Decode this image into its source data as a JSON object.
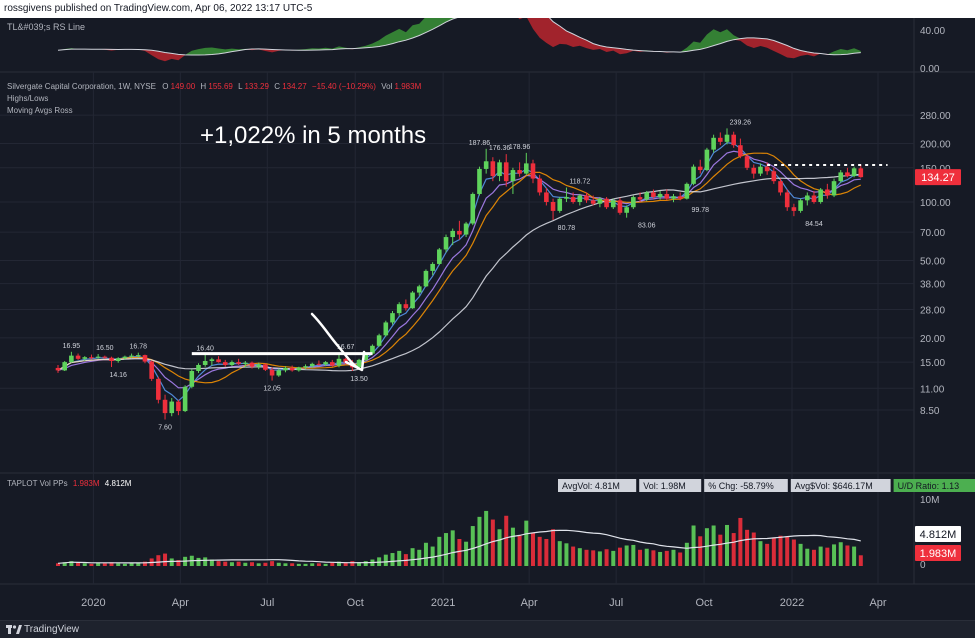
{
  "header": {
    "published": "rossgivens published on TradingView.com, Apr 06, 2022 13:17 UTC-5"
  },
  "footer": {
    "brand": "TradingView"
  },
  "colors": {
    "up": "#26a69a",
    "up_bright": "#5fd35c",
    "down": "#ef2f3c",
    "bg": "#161a25",
    "grid": "#232734"
  },
  "chart_data": [
    {
      "type": "area",
      "title": "TL&#039;s RS Line",
      "y_ticks": [
        "40.00",
        "0.00"
      ],
      "ylim": [
        -5,
        50
      ]
    },
    {
      "type": "candlestick",
      "title": "Silvergate Capital Corporation, 1W, NYSE",
      "ohlc_legend": {
        "o_label": "O",
        "o": "149.00",
        "h_label": "H",
        "h": "155.69",
        "l_label": "L",
        "l": "133.29",
        "c_label": "C",
        "c": "134.27",
        "chg": "−15.40 (−10.29%)",
        "vol_label": "Vol",
        "vol": "1.983M"
      },
      "indicators": [
        "Highs/Lows",
        "Moving Avgs Ross"
      ],
      "scale": "log",
      "y_ticks": [
        "280.00",
        "200.00",
        "150.00",
        "100.00",
        "70.00",
        "50.00",
        "38.00",
        "28.00",
        "20.00",
        "15.00",
        "11.00",
        "8.50"
      ],
      "last_price": "134.27",
      "annotation": "+1,022% in 5 months",
      "x_ticks": [
        "2020",
        "Apr",
        "Jul",
        "Oct",
        "2021",
        "Apr",
        "Jul",
        "Oct",
        "2022",
        "Apr"
      ],
      "pivot_labels": [
        {
          "date": "2019-12-09",
          "text": "16.95",
          "value": 16.95,
          "pos": "above"
        },
        {
          "date": "2020-01-13",
          "text": "16.50",
          "value": 16.5,
          "pos": "above"
        },
        {
          "date": "2020-01-27",
          "text": "14.16",
          "value": 14.16,
          "pos": "below"
        },
        {
          "date": "2020-02-17",
          "text": "16.78",
          "value": 16.78,
          "pos": "above"
        },
        {
          "date": "2020-03-16",
          "text": "7.60",
          "value": 7.6,
          "pos": "below"
        },
        {
          "date": "2020-04-27",
          "text": "16.40",
          "value": 16.4,
          "pos": "above"
        },
        {
          "date": "2020-07-06",
          "text": "12.05",
          "value": 12.05,
          "pos": "below"
        },
        {
          "date": "2020-09-21",
          "text": "16.67",
          "value": 16.67,
          "pos": "above"
        },
        {
          "date": "2020-10-05",
          "text": "13.50",
          "value": 13.5,
          "pos": "below"
        },
        {
          "date": "2021-02-08",
          "text": "187.86",
          "value": 187.86,
          "pos": "above"
        },
        {
          "date": "2021-03-01",
          "text": "176.36",
          "value": 176.36,
          "pos": "above"
        },
        {
          "date": "2021-03-22",
          "text": "178.96",
          "value": 178.96,
          "pos": "above"
        },
        {
          "date": "2021-05-10",
          "text": "80.78",
          "value": 80.78,
          "pos": "below"
        },
        {
          "date": "2021-05-24",
          "text": "118.72",
          "value": 118.72,
          "pos": "above"
        },
        {
          "date": "2021-08-02",
          "text": "83.06",
          "value": 83.06,
          "pos": "below"
        },
        {
          "date": "2021-09-27",
          "text": "99.78",
          "value": 99.78,
          "pos": "below"
        },
        {
          "date": "2021-11-08",
          "text": "239.26",
          "value": 239.26,
          "pos": "above"
        },
        {
          "date": "2022-01-24",
          "text": "84.54",
          "value": 84.54,
          "pos": "below"
        }
      ],
      "resistance_line": {
        "from": "2020-04-13",
        "to": "2020-10-19",
        "value": 16.6
      },
      "dotted_line": {
        "from": "2021-12-06",
        "to": "2022-04-11",
        "value": 155
      }
    },
    {
      "type": "bar",
      "title": "TAPLOT Vol PPs",
      "vol_values": [
        "1.983M",
        "4.812M"
      ],
      "y_ticks": [
        "10M",
        "0"
      ],
      "last_labels": [
        "4.812M",
        "1.983M"
      ],
      "stats": [
        {
          "text": "AvgVol: 4.81M",
          "hl": false
        },
        {
          "text": "Vol: 1.98M",
          "hl": false
        },
        {
          "text": "% Chg: -58.79%",
          "hl": false
        },
        {
          "text": "Avg$Vol: $646.17M",
          "hl": false
        },
        {
          "text": "U/D Ratio: 1.13",
          "hl": true
        }
      ]
    }
  ],
  "series": {
    "start_date": "2019-11-25",
    "weeks": [
      [
        14.0,
        14.5,
        13.2,
        13.6,
        0.5
      ],
      [
        13.6,
        15.2,
        13.5,
        15.0,
        0.7
      ],
      [
        15.0,
        16.95,
        14.9,
        16.2,
        0.9
      ],
      [
        16.2,
        16.6,
        15.4,
        15.6,
        0.6
      ],
      [
        15.6,
        16.1,
        15.2,
        15.9,
        0.5
      ],
      [
        15.9,
        16.4,
        15.5,
        15.8,
        0.4
      ],
      [
        15.8,
        16.5,
        15.6,
        16.0,
        0.6
      ],
      [
        16.0,
        16.2,
        15.6,
        15.8,
        0.5
      ],
      [
        15.8,
        16.0,
        14.16,
        15.2,
        0.7
      ],
      [
        15.2,
        15.9,
        14.9,
        15.7,
        0.5
      ],
      [
        15.7,
        16.2,
        15.4,
        16.0,
        0.4
      ],
      [
        16.0,
        16.6,
        15.7,
        16.2,
        0.5
      ],
      [
        16.2,
        16.78,
        15.8,
        16.3,
        0.6
      ],
      [
        16.3,
        16.4,
        14.8,
        15.1,
        0.8
      ],
      [
        15.1,
        15.3,
        12.0,
        12.3,
        1.4
      ],
      [
        12.3,
        12.6,
        9.2,
        9.6,
        2.0
      ],
      [
        9.6,
        10.2,
        7.6,
        8.2,
        2.3
      ],
      [
        8.2,
        9.8,
        7.9,
        9.4,
        1.4
      ],
      [
        9.4,
        9.6,
        8.0,
        8.4,
        1.1
      ],
      [
        8.4,
        11.4,
        8.3,
        11.2,
        1.7
      ],
      [
        11.2,
        13.8,
        11.0,
        13.5,
        1.9
      ],
      [
        13.5,
        14.8,
        13.2,
        14.5,
        1.5
      ],
      [
        14.5,
        16.4,
        14.2,
        15.2,
        1.6
      ],
      [
        15.2,
        15.8,
        14.4,
        15.5,
        1.2
      ],
      [
        15.5,
        16.1,
        14.9,
        15.0,
        0.9
      ],
      [
        15.0,
        15.4,
        14.2,
        14.5,
        0.8
      ],
      [
        14.5,
        15.3,
        14.3,
        15.0,
        0.7
      ],
      [
        15.0,
        15.6,
        14.5,
        14.7,
        0.8
      ],
      [
        14.7,
        15.2,
        14.1,
        14.9,
        0.6
      ],
      [
        14.9,
        15.1,
        13.9,
        14.2,
        0.7
      ],
      [
        14.2,
        14.9,
        13.8,
        14.6,
        0.5
      ],
      [
        14.6,
        14.8,
        13.5,
        13.7,
        0.6
      ],
      [
        13.7,
        14.1,
        12.05,
        12.8,
        0.9
      ],
      [
        12.8,
        13.9,
        12.6,
        13.6,
        0.6
      ],
      [
        13.6,
        14.3,
        13.3,
        14.0,
        0.5
      ],
      [
        14.0,
        14.4,
        13.4,
        13.6,
        0.5
      ],
      [
        13.6,
        14.2,
        13.4,
        14.1,
        0.4
      ],
      [
        14.1,
        14.6,
        13.8,
        14.3,
        0.4
      ],
      [
        14.3,
        14.9,
        14.0,
        14.7,
        0.5
      ],
      [
        14.7,
        15.3,
        14.4,
        14.6,
        0.5
      ],
      [
        14.6,
        15.2,
        14.3,
        15.0,
        0.4
      ],
      [
        15.0,
        15.4,
        14.2,
        14.4,
        0.6
      ],
      [
        14.4,
        16.67,
        14.1,
        15.6,
        0.8
      ],
      [
        15.6,
        15.8,
        14.6,
        14.9,
        0.7
      ],
      [
        14.9,
        15.4,
        13.5,
        14.1,
        0.9
      ],
      [
        14.1,
        15.6,
        13.9,
        15.4,
        0.7
      ],
      [
        15.4,
        16.9,
        15.2,
        16.6,
        0.9
      ],
      [
        16.6,
        18.5,
        16.4,
        18.2,
        1.2
      ],
      [
        18.2,
        21.0,
        18.0,
        20.6,
        1.6
      ],
      [
        20.6,
        24.5,
        20.3,
        24.0,
        2.1
      ],
      [
        24.0,
        27.5,
        23.4,
        26.8,
        2.4
      ],
      [
        26.8,
        30.5,
        26.0,
        29.8,
        2.8
      ],
      [
        29.8,
        31.5,
        27.6,
        28.4,
        2.2
      ],
      [
        28.4,
        34.8,
        28.2,
        34.2,
        3.3
      ],
      [
        34.2,
        37.5,
        33.0,
        36.8,
        3.0
      ],
      [
        36.8,
        45.0,
        36.5,
        44.2,
        4.3
      ],
      [
        44.2,
        49.0,
        42.0,
        48.0,
        3.6
      ],
      [
        48.0,
        58.0,
        47.5,
        57.0,
        5.4
      ],
      [
        57.0,
        68.0,
        55.0,
        66.0,
        6.1
      ],
      [
        66.0,
        73.0,
        60.0,
        71.0,
        6.6
      ],
      [
        71.0,
        80.0,
        64.0,
        68.0,
        5.0
      ],
      [
        68.0,
        79.0,
        66.0,
        77.5,
        4.5
      ],
      [
        77.5,
        112.0,
        76.0,
        110.0,
        7.4
      ],
      [
        110.0,
        152.0,
        108.0,
        148.0,
        9.1
      ],
      [
        148.0,
        187.86,
        140.0,
        162.0,
        10.2
      ],
      [
        162.0,
        170.0,
        128.0,
        136.0,
        8.6
      ],
      [
        136.0,
        165.0,
        128.0,
        160.0,
        6.8
      ],
      [
        160.0,
        176.36,
        120.0,
        128.0,
        9.3
      ],
      [
        128.0,
        150.0,
        110.0,
        146.0,
        7.1
      ],
      [
        146.0,
        160.0,
        135.0,
        140.0,
        5.6
      ],
      [
        140.0,
        178.96,
        138.0,
        158.0,
        8.4
      ],
      [
        158.0,
        165.0,
        125.0,
        132.0,
        6.2
      ],
      [
        132.0,
        138.0,
        108.0,
        112.0,
        5.4
      ],
      [
        112.0,
        118.0,
        96.0,
        100.0,
        5.0
      ],
      [
        100.0,
        104.0,
        80.78,
        90.0,
        6.8
      ],
      [
        90.0,
        106.0,
        88.0,
        104.0,
        4.6
      ],
      [
        104.0,
        118.72,
        100.0,
        106.0,
        4.2
      ],
      [
        106.0,
        112.0,
        98.0,
        100.0,
        3.6
      ],
      [
        100.0,
        110.0,
        96.0,
        108.0,
        3.3
      ],
      [
        108.0,
        112.0,
        99.0,
        102.0,
        3.0
      ],
      [
        102.0,
        108.0,
        96.0,
        98.0,
        2.9
      ],
      [
        98.0,
        106.0,
        94.0,
        104.0,
        2.7
      ],
      [
        104.0,
        106.0,
        92.0,
        94.0,
        3.1
      ],
      [
        94.0,
        104.0,
        92.0,
        102.0,
        2.8
      ],
      [
        102.0,
        105.0,
        86.0,
        88.0,
        3.4
      ],
      [
        88.0,
        96.0,
        83.06,
        94.0,
        3.8
      ],
      [
        94.0,
        108.0,
        92.0,
        106.0,
        3.9
      ],
      [
        106.0,
        112.0,
        100.0,
        103.0,
        3.0
      ],
      [
        103.0,
        114.0,
        101.0,
        112.0,
        3.2
      ],
      [
        112.0,
        116.0,
        104.0,
        106.0,
        2.9
      ],
      [
        106.0,
        114.0,
        103.0,
        110.0,
        2.6
      ],
      [
        110.0,
        116.0,
        102.0,
        104.0,
        2.8
      ],
      [
        104.0,
        110.0,
        99.78,
        107.0,
        3.0
      ],
      [
        107.0,
        112.0,
        102.0,
        104.0,
        2.5
      ],
      [
        104.0,
        126.0,
        103.0,
        124.0,
        4.3
      ],
      [
        124.0,
        156.0,
        122.0,
        152.0,
        7.5
      ],
      [
        152.0,
        165.0,
        140.0,
        146.0,
        5.5
      ],
      [
        146.0,
        190.0,
        144.0,
        186.0,
        7.0
      ],
      [
        186.0,
        222.0,
        180.0,
        214.0,
        7.5
      ],
      [
        214.0,
        228.0,
        196.0,
        204.0,
        5.8
      ],
      [
        204.0,
        239.26,
        198.0,
        222.0,
        7.6
      ],
      [
        222.0,
        230.0,
        190.0,
        196.0,
        6.1
      ],
      [
        196.0,
        212.0,
        168.0,
        172.0,
        8.9
      ],
      [
        172.0,
        176.0,
        146.0,
        150.0,
        6.7
      ],
      [
        150.0,
        156.0,
        132.0,
        140.0,
        6.2
      ],
      [
        140.0,
        158.0,
        136.0,
        152.0,
        4.6
      ],
      [
        152.0,
        160.0,
        138.0,
        144.0,
        4.1
      ],
      [
        144.0,
        150.0,
        124.0,
        128.0,
        5.2
      ],
      [
        128.0,
        132.0,
        108.0,
        112.0,
        5.6
      ],
      [
        112.0,
        116.0,
        90.0,
        94.0,
        5.4
      ],
      [
        94.0,
        98.0,
        84.54,
        90.0,
        4.9
      ],
      [
        90.0,
        104.0,
        88.0,
        102.0,
        4.1
      ],
      [
        102.0,
        112.0,
        96.0,
        108.0,
        3.2
      ],
      [
        108.0,
        114.0,
        98.0,
        100.0,
        3.0
      ],
      [
        100.0,
        118.0,
        98.0,
        116.0,
        3.6
      ],
      [
        116.0,
        124.0,
        104.0,
        108.0,
        3.4
      ],
      [
        108.0,
        132.0,
        106.0,
        128.0,
        4.0
      ],
      [
        128.0,
        146.0,
        126.0,
        142.0,
        4.4
      ],
      [
        142.0,
        150.0,
        134.0,
        136.0,
        3.8
      ],
      [
        136.0,
        152.0,
        134.0,
        149.0,
        3.6
      ],
      [
        149.0,
        155.69,
        133.29,
        134.27,
        1.983
      ]
    ]
  }
}
